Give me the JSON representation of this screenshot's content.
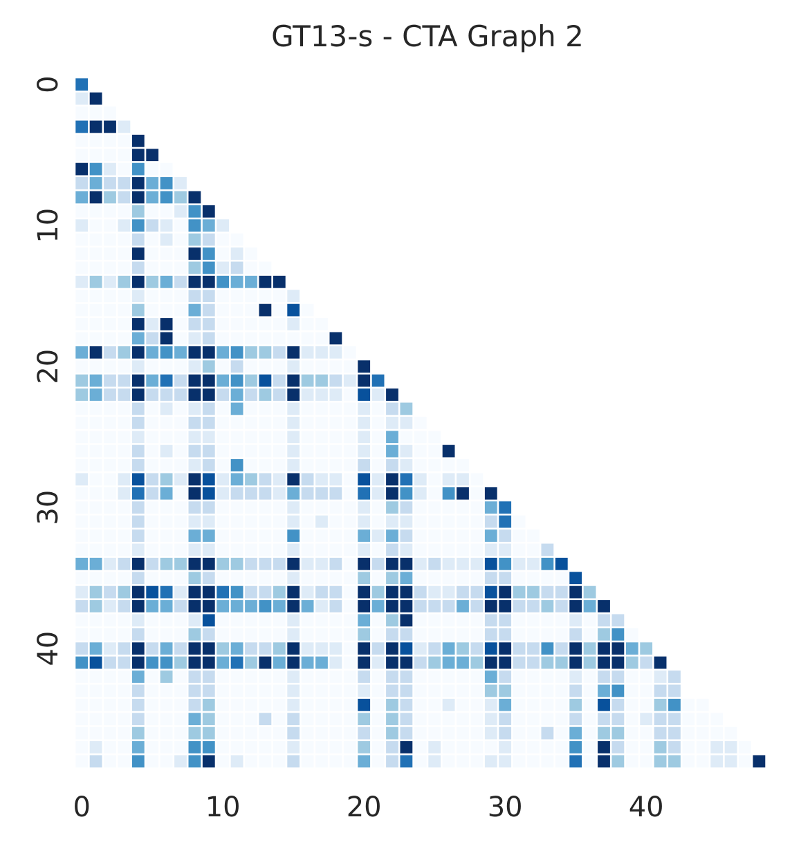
{
  "chart_data": {
    "type": "heatmap",
    "title": "GT13-s - CTA Graph 2",
    "n": 49,
    "x_ticks": [
      0,
      10,
      20,
      30,
      40
    ],
    "y_ticks": [
      0,
      10,
      20,
      30,
      40
    ],
    "mask": "upper-triangle",
    "grid": false,
    "colormap": "Blues",
    "colors": [
      "#f7fbff",
      "#deebf7",
      "#c6dbef",
      "#9ecae1",
      "#6baed6",
      "#4292c6",
      "#2171b5",
      "#08519c",
      "#08306b"
    ],
    "vmin": 0,
    "vmax": 8,
    "values": [
      [
        6
      ],
      [
        1,
        8
      ],
      [
        0,
        0,
        0
      ],
      [
        6,
        8,
        8,
        1
      ],
      [
        0,
        0,
        0,
        0,
        8
      ],
      [
        0,
        0,
        0,
        0,
        8,
        8
      ],
      [
        8,
        5,
        1,
        0,
        5,
        0,
        0
      ],
      [
        2,
        4,
        2,
        2,
        8,
        4,
        5,
        1
      ],
      [
        4,
        8,
        3,
        2,
        8,
        4,
        5,
        3,
        8
      ],
      [
        0,
        0,
        0,
        0,
        3,
        0,
        0,
        1,
        5,
        8
      ],
      [
        1,
        0,
        0,
        1,
        5,
        2,
        1,
        0,
        5,
        4,
        1
      ],
      [
        0,
        0,
        0,
        0,
        2,
        0,
        1,
        0,
        3,
        2,
        0,
        0
      ],
      [
        0,
        0,
        0,
        0,
        8,
        0,
        0,
        0,
        8,
        5,
        0,
        1,
        0
      ],
      [
        0,
        0,
        0,
        0,
        2,
        0,
        0,
        0,
        3,
        5,
        1,
        2,
        0,
        0
      ],
      [
        1,
        3,
        1,
        3,
        8,
        3,
        4,
        2,
        8,
        8,
        5,
        4,
        4,
        8,
        8
      ],
      [
        0,
        0,
        0,
        0,
        1,
        0,
        0,
        0,
        2,
        2,
        0,
        0,
        0,
        0,
        0,
        1
      ],
      [
        0,
        0,
        0,
        0,
        3,
        0,
        0,
        0,
        4,
        2,
        0,
        0,
        0,
        8,
        0,
        7,
        0
      ],
      [
        0,
        0,
        0,
        0,
        8,
        1,
        8,
        0,
        2,
        2,
        0,
        0,
        0,
        0,
        0,
        1,
        0,
        0
      ],
      [
        0,
        0,
        0,
        0,
        4,
        2,
        8,
        0,
        1,
        2,
        0,
        0,
        0,
        0,
        0,
        0,
        0,
        0,
        8
      ],
      [
        4,
        8,
        2,
        3,
        8,
        4,
        5,
        4,
        8,
        8,
        4,
        5,
        3,
        3,
        2,
        8,
        1,
        1,
        1,
        0
      ],
      [
        0,
        0,
        0,
        0,
        1,
        0,
        0,
        0,
        1,
        3,
        0,
        2,
        0,
        0,
        0,
        1,
        0,
        0,
        0,
        0,
        8
      ],
      [
        3,
        4,
        2,
        2,
        8,
        4,
        6,
        2,
        8,
        8,
        4,
        5,
        3,
        7,
        2,
        8,
        3,
        3,
        2,
        1,
        8,
        6
      ],
      [
        3,
        4,
        2,
        2,
        8,
        2,
        2,
        2,
        8,
        8,
        2,
        4,
        2,
        3,
        2,
        8,
        1,
        1,
        1,
        0,
        7,
        1,
        8
      ],
      [
        0,
        0,
        0,
        0,
        2,
        0,
        1,
        0,
        1,
        2,
        0,
        4,
        0,
        0,
        0,
        1,
        0,
        0,
        0,
        0,
        1,
        0,
        2,
        3
      ],
      [
        0,
        0,
        0,
        0,
        2,
        0,
        0,
        0,
        2,
        2,
        0,
        0,
        0,
        0,
        0,
        1,
        0,
        0,
        0,
        0,
        1,
        0,
        1,
        1,
        0
      ],
      [
        0,
        0,
        0,
        0,
        1,
        0,
        0,
        0,
        1,
        1,
        0,
        0,
        0,
        0,
        0,
        1,
        0,
        0,
        0,
        0,
        1,
        0,
        4,
        0,
        0,
        0
      ],
      [
        0,
        0,
        0,
        0,
        2,
        0,
        1,
        0,
        2,
        2,
        0,
        0,
        0,
        0,
        0,
        1,
        0,
        0,
        0,
        0,
        1,
        0,
        4,
        1,
        0,
        0,
        8
      ],
      [
        0,
        0,
        0,
        0,
        2,
        0,
        0,
        0,
        1,
        2,
        0,
        5,
        0,
        0,
        0,
        1,
        0,
        0,
        0,
        0,
        2,
        0,
        2,
        1,
        0,
        0,
        0,
        0
      ],
      [
        1,
        0,
        0,
        1,
        7,
        2,
        3,
        1,
        8,
        7,
        1,
        4,
        3,
        2,
        1,
        8,
        2,
        1,
        1,
        0,
        7,
        1,
        8,
        6,
        1,
        0,
        1,
        1,
        0
      ],
      [
        0,
        0,
        0,
        1,
        6,
        2,
        4,
        0,
        8,
        7,
        1,
        2,
        2,
        2,
        1,
        4,
        2,
        2,
        2,
        0,
        6,
        1,
        8,
        5,
        1,
        0,
        5,
        8,
        0,
        8
      ],
      [
        0,
        0,
        0,
        0,
        2,
        0,
        0,
        0,
        2,
        2,
        0,
        0,
        0,
        0,
        0,
        1,
        0,
        0,
        0,
        0,
        1,
        0,
        3,
        2,
        0,
        0,
        0,
        0,
        0,
        4,
        6
      ],
      [
        0,
        0,
        0,
        0,
        2,
        0,
        0,
        0,
        1,
        1,
        0,
        0,
        0,
        0,
        0,
        1,
        0,
        1,
        0,
        0,
        1,
        0,
        1,
        1,
        0,
        0,
        0,
        0,
        0,
        2,
        6,
        0
      ],
      [
        0,
        0,
        0,
        0,
        2,
        0,
        0,
        0,
        4,
        4,
        0,
        0,
        0,
        0,
        0,
        5,
        0,
        0,
        0,
        0,
        4,
        1,
        4,
        2,
        0,
        0,
        0,
        0,
        0,
        4,
        2,
        0,
        0
      ],
      [
        0,
        0,
        0,
        0,
        1,
        0,
        0,
        0,
        1,
        1,
        0,
        0,
        0,
        0,
        0,
        1,
        0,
        0,
        0,
        0,
        1,
        0,
        2,
        1,
        0,
        0,
        0,
        0,
        0,
        1,
        1,
        0,
        0,
        2
      ],
      [
        4,
        4,
        1,
        2,
        8,
        2,
        3,
        3,
        8,
        8,
        3,
        3,
        2,
        2,
        2,
        8,
        1,
        1,
        2,
        0,
        8,
        2,
        8,
        8,
        1,
        2,
        1,
        1,
        1,
        7,
        5,
        1,
        1,
        5,
        7
      ],
      [
        0,
        0,
        0,
        0,
        2,
        0,
        0,
        0,
        3,
        2,
        0,
        0,
        0,
        0,
        0,
        1,
        0,
        0,
        0,
        0,
        3,
        0,
        3,
        4,
        0,
        0,
        0,
        0,
        0,
        2,
        2,
        0,
        0,
        0,
        0,
        7
      ],
      [
        1,
        3,
        2,
        3,
        8,
        7,
        6,
        1,
        8,
        8,
        6,
        5,
        2,
        2,
        3,
        8,
        1,
        2,
        2,
        0,
        8,
        3,
        8,
        8,
        2,
        1,
        1,
        2,
        2,
        7,
        8,
        3,
        3,
        2,
        2,
        8,
        3
      ],
      [
        2,
        3,
        1,
        2,
        8,
        4,
        4,
        2,
        8,
        8,
        4,
        4,
        4,
        5,
        4,
        8,
        4,
        1,
        2,
        0,
        8,
        4,
        8,
        8,
        2,
        2,
        2,
        4,
        2,
        8,
        8,
        2,
        2,
        3,
        2,
        8,
        4,
        8
      ],
      [
        0,
        0,
        0,
        0,
        1,
        0,
        0,
        0,
        1,
        7,
        0,
        0,
        0,
        0,
        0,
        1,
        0,
        0,
        0,
        0,
        4,
        0,
        3,
        8,
        0,
        0,
        0,
        0,
        0,
        2,
        2,
        0,
        0,
        0,
        0,
        1,
        0,
        2,
        2
      ],
      [
        0,
        0,
        0,
        0,
        2,
        0,
        0,
        0,
        3,
        2,
        0,
        0,
        0,
        0,
        0,
        1,
        0,
        0,
        0,
        0,
        3,
        0,
        2,
        2,
        0,
        0,
        0,
        0,
        0,
        2,
        2,
        0,
        0,
        0,
        0,
        2,
        0,
        3,
        5,
        0
      ],
      [
        2,
        4,
        1,
        2,
        8,
        2,
        4,
        2,
        8,
        8,
        3,
        4,
        2,
        2,
        3,
        8,
        1,
        1,
        1,
        0,
        8,
        2,
        8,
        7,
        1,
        2,
        4,
        3,
        2,
        7,
        8,
        2,
        2,
        5,
        2,
        8,
        3,
        8,
        8,
        4,
        3
      ],
      [
        5,
        7,
        2,
        2,
        8,
        5,
        5,
        3,
        8,
        8,
        4,
        6,
        3,
        8,
        4,
        8,
        4,
        4,
        1,
        0,
        8,
        1,
        8,
        8,
        2,
        3,
        4,
        4,
        3,
        8,
        8,
        2,
        2,
        3,
        3,
        8,
        3,
        8,
        8,
        3,
        2,
        8
      ],
      [
        0,
        0,
        0,
        0,
        4,
        0,
        3,
        0,
        2,
        2,
        0,
        0,
        0,
        0,
        0,
        1,
        0,
        0,
        0,
        0,
        2,
        0,
        2,
        2,
        0,
        0,
        0,
        0,
        0,
        4,
        2,
        0,
        0,
        0,
        0,
        1,
        0,
        2,
        2,
        0,
        0,
        1,
        2
      ],
      [
        0,
        0,
        0,
        0,
        2,
        0,
        0,
        0,
        2,
        2,
        0,
        0,
        0,
        0,
        0,
        1,
        0,
        0,
        0,
        0,
        1,
        0,
        2,
        2,
        0,
        0,
        0,
        0,
        0,
        3,
        3,
        0,
        0,
        0,
        0,
        2,
        0,
        4,
        5,
        0,
        0,
        2,
        2
      ],
      [
        0,
        0,
        0,
        0,
        2,
        0,
        0,
        0,
        2,
        3,
        0,
        0,
        0,
        0,
        0,
        1,
        0,
        0,
        0,
        0,
        7,
        0,
        3,
        2,
        0,
        0,
        1,
        0,
        0,
        1,
        4,
        0,
        0,
        0,
        0,
        3,
        0,
        7,
        2,
        0,
        0,
        3,
        5,
        0,
        0
      ],
      [
        0,
        0,
        0,
        0,
        2,
        0,
        0,
        0,
        4,
        3,
        0,
        0,
        0,
        2,
        0,
        2,
        0,
        0,
        0,
        0,
        3,
        0,
        3,
        2,
        0,
        0,
        0,
        0,
        0,
        1,
        2,
        0,
        0,
        0,
        0,
        2,
        0,
        2,
        2,
        0,
        1,
        2,
        2,
        0,
        0,
        0
      ],
      [
        0,
        0,
        0,
        0,
        3,
        0,
        0,
        0,
        3,
        3,
        0,
        0,
        0,
        0,
        0,
        2,
        0,
        0,
        0,
        0,
        2,
        0,
        3,
        2,
        0,
        0,
        0,
        0,
        0,
        1,
        2,
        0,
        0,
        2,
        0,
        4,
        0,
        3,
        3,
        0,
        0,
        2,
        2,
        0,
        0,
        0,
        0
      ],
      [
        0,
        1,
        0,
        0,
        4,
        0,
        0,
        0,
        5,
        5,
        0,
        0,
        0,
        0,
        0,
        1,
        0,
        0,
        0,
        0,
        3,
        0,
        2,
        8,
        0,
        1,
        0,
        0,
        0,
        0,
        1,
        0,
        0,
        0,
        0,
        5,
        0,
        8,
        2,
        0,
        0,
        3,
        2,
        0,
        0,
        1,
        1,
        0
      ],
      [
        0,
        2,
        0,
        0,
        5,
        0,
        0,
        1,
        5,
        8,
        0,
        1,
        0,
        0,
        0,
        2,
        0,
        0,
        0,
        0,
        4,
        0,
        2,
        6,
        0,
        1,
        0,
        0,
        0,
        1,
        1,
        0,
        0,
        0,
        0,
        6,
        0,
        8,
        3,
        0,
        0,
        3,
        3,
        0,
        0,
        1,
        1,
        0,
        8
      ]
    ]
  }
}
